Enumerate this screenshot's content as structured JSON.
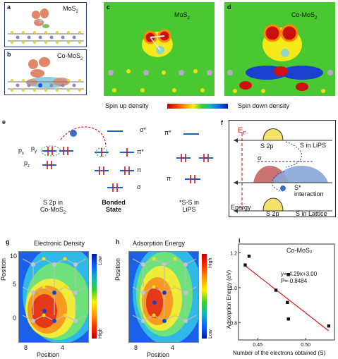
{
  "panel_a": {
    "label": "a",
    "title": "MoS",
    "title_sub": "2"
  },
  "panel_b": {
    "label": "b",
    "title": "Co-MoS",
    "title_sub": "2"
  },
  "panel_c": {
    "label": "c",
    "title": "MoS",
    "title_sub": "2"
  },
  "panel_d": {
    "label": "d",
    "title": "Co-MoS",
    "title_sub": "2"
  },
  "colorbar": {
    "left": "Spin up density",
    "right": "Spin down density"
  },
  "panel_e": {
    "label": "e",
    "orb_px": "p",
    "orb_px_sub": "x",
    "orb_py": "p",
    "orb_py_sub": "y",
    "orb_pz": "p",
    "orb_pz_sub": "z",
    "sigma_star": "σ*",
    "pi_star": "π*",
    "pi": "π",
    "sigma": "σ",
    "pi_star_right": "π*",
    "pi_right": "π",
    "col1_line1": "S 2p in",
    "col1_line2": "Co-MoS",
    "col1_line2_sub": "2",
    "col2_line1": "Bonded",
    "col2_line2": "State",
    "col3_line1": "*S-S in",
    "col3_line2": "LiPS"
  },
  "panel_f": {
    "label": "f",
    "ef": "E",
    "ef_sub": "F",
    "s2p_top": "S 2p",
    "lips": "S in LiPS",
    "sigma": "σ",
    "sstar": "S*",
    "interaction": "interaction",
    "energy": "Energy",
    "s2p_bottom": "S 2p",
    "lattice": "S in Lattice"
  },
  "panel_g": {
    "label": "g",
    "title": "Electronic Density",
    "ylabel": "Position",
    "xlabel": "Position",
    "yticks": [
      "10",
      "5",
      "0"
    ],
    "xticks": [
      "8",
      "4"
    ],
    "cb_high": "High",
    "cb_low": "Low"
  },
  "panel_h": {
    "label": "h",
    "title": "Adsorption Energy",
    "ylabel": "Position",
    "xlabel": "Position",
    "xticks": [
      "8",
      "4"
    ],
    "cb_high": "High",
    "cb_low": "Low"
  },
  "chart_data": {
    "type": "scatter",
    "label": "i",
    "title": "Co-MoS₂",
    "xlabel": "Number of the electrons obtained (S)",
    "ylabel": "Adsorption Energy (eV)",
    "xlim": [
      0.43,
      0.53
    ],
    "ylim": [
      0.7,
      1.25
    ],
    "xticks": [
      "0.45",
      "0.50"
    ],
    "yticks": [
      "0.8",
      "1.0",
      "1.2"
    ],
    "points": [
      [
        0.437,
        1.13
      ],
      [
        0.441,
        1.18
      ],
      [
        0.469,
        0.985
      ],
      [
        0.482,
        1.075
      ],
      [
        0.481,
        0.915
      ],
      [
        0.482,
        0.82
      ],
      [
        0.524,
        0.78
      ]
    ],
    "fit": {
      "slope": -4.29,
      "intercept": 3.0
    },
    "annotation_eq": "y=-4.29x+3.00",
    "annotation_p": "P=-0.8484",
    "fit_color": "#e01818"
  }
}
